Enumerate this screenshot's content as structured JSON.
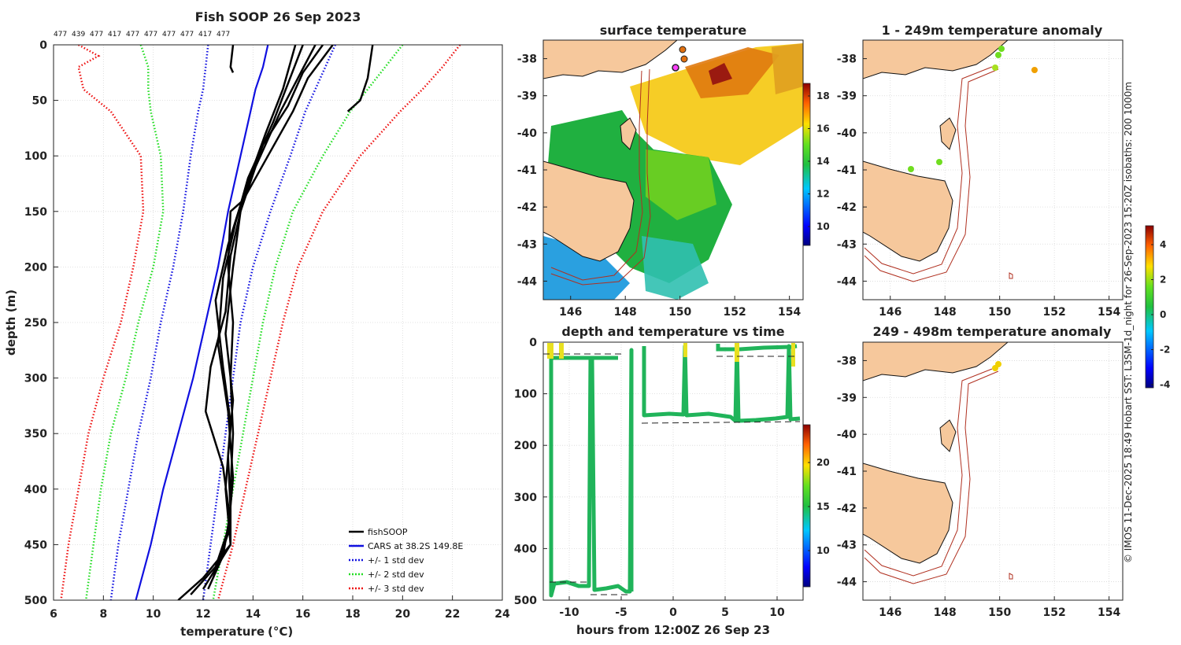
{
  "chart_data": [
    {
      "type": "line",
      "title": "Fish SOOP 26 Sep 2023",
      "xlabel": "temperature",
      "xlabel_unit": "(°C)",
      "ylabel": "depth (m)",
      "xlim": [
        6,
        24
      ],
      "ylim": [
        500,
        0
      ],
      "x_ticks": [
        "6",
        "8",
        "10",
        "12",
        "14",
        "16",
        "18",
        "20",
        "22",
        "24"
      ],
      "y_ticks": [
        "0",
        "50",
        "100",
        "150",
        "200",
        "250",
        "300",
        "350",
        "400",
        "450",
        "500"
      ],
      "top_counts": [
        "477",
        "439",
        "477",
        "417",
        "477",
        "477",
        "477",
        "477",
        "417",
        "477"
      ],
      "legend": [
        "fishSOOP",
        "CARS at 38.2S 149.8E",
        "+/- 1 std dev",
        "+/- 2 std dev",
        "+/- 3 std dev"
      ],
      "series": [
        {
          "name": "CARS",
          "color": "#1010e0",
          "depth": [
            0,
            20,
            40,
            60,
            100,
            150,
            200,
            250,
            300,
            350,
            400,
            450,
            500
          ],
          "temp": [
            14.6,
            14.4,
            14.1,
            13.9,
            13.5,
            13.0,
            12.6,
            12.1,
            11.6,
            11.0,
            10.4,
            9.9,
            9.3
          ]
        },
        {
          "name": "+1 std",
          "color": "#1010e0",
          "dotted": true,
          "depth": [
            0,
            20,
            40,
            60,
            100,
            150,
            200,
            250,
            300,
            350,
            400,
            450,
            500
          ],
          "temp": [
            17.3,
            16.9,
            16.5,
            16.1,
            15.5,
            14.7,
            14.0,
            13.5,
            13.2,
            12.9,
            12.6,
            12.3,
            12.0
          ]
        },
        {
          "name": "-1 std",
          "color": "#1010e0",
          "dotted": true,
          "depth": [
            0,
            20,
            40,
            60,
            100,
            150,
            200,
            250,
            300,
            350,
            400,
            450,
            500
          ],
          "temp": [
            12.2,
            12.1,
            12.0,
            11.8,
            11.5,
            11.2,
            10.8,
            10.3,
            9.9,
            9.4,
            9.0,
            8.6,
            8.3
          ]
        },
        {
          "name": "+2 std",
          "color": "#22dd22",
          "dotted": true,
          "depth": [
            0,
            20,
            40,
            60,
            100,
            150,
            200,
            250,
            300,
            350,
            400,
            450,
            500
          ],
          "temp": [
            20.0,
            19.3,
            18.6,
            17.9,
            16.8,
            15.6,
            14.9,
            14.4,
            14.0,
            13.6,
            13.2,
            12.8,
            12.4
          ]
        },
        {
          "name": "-2 std",
          "color": "#22dd22",
          "dotted": true,
          "depth": [
            0,
            20,
            40,
            60,
            100,
            150,
            200,
            250,
            300,
            350,
            400,
            450,
            500
          ],
          "temp": [
            9.5,
            9.8,
            9.8,
            9.9,
            10.3,
            10.4,
            10.0,
            9.4,
            8.9,
            8.3,
            7.9,
            7.6,
            7.3
          ]
        },
        {
          "name": "+3 std",
          "color": "#ee1111",
          "dotted": true,
          "depth": [
            0,
            20,
            40,
            60,
            100,
            150,
            200,
            250,
            300,
            350,
            400,
            450,
            500
          ],
          "temp": [
            22.3,
            21.6,
            20.8,
            19.9,
            18.3,
            16.8,
            15.8,
            15.2,
            14.7,
            14.2,
            13.7,
            13.2,
            12.6
          ]
        },
        {
          "name": "-3 std",
          "color": "#ee1111",
          "dotted": true,
          "depth": [
            0,
            10,
            20,
            40,
            60,
            100,
            150,
            200,
            250,
            300,
            350,
            400,
            450,
            500
          ],
          "temp": [
            7.0,
            7.8,
            7.0,
            7.2,
            8.3,
            9.5,
            9.6,
            9.2,
            8.7,
            8.0,
            7.4,
            7.0,
            6.6,
            6.3
          ]
        }
      ],
      "fish_profiles": [
        {
          "depth": [
            0,
            30,
            60,
            100,
            140,
            150,
            200,
            250,
            300,
            350,
            400,
            450,
            480,
            500
          ],
          "temp": [
            17.2,
            16.2,
            15.6,
            14.6,
            13.6,
            13.1,
            13.0,
            13.2,
            13.1,
            13.2,
            13.1,
            13.1,
            12.0,
            11.0
          ]
        },
        {
          "depth": [
            0,
            25,
            55,
            90,
            140,
            190,
            240,
            290,
            330,
            380,
            430,
            470,
            495
          ],
          "temp": [
            16.8,
            16.0,
            15.4,
            14.4,
            13.6,
            13.1,
            12.9,
            12.3,
            12.1,
            12.8,
            13.1,
            12.5,
            11.5
          ]
        },
        {
          "depth": [
            0,
            30,
            60,
            110,
            150,
            200,
            260,
            320,
            370,
            420,
            460,
            490
          ],
          "temp": [
            16.5,
            15.8,
            15.1,
            14.1,
            13.5,
            13.2,
            12.9,
            13.2,
            13.0,
            13.1,
            12.8,
            12.2
          ]
        },
        {
          "depth": [
            0,
            35,
            70,
            120,
            160,
            210,
            270,
            330,
            390,
            440,
            480
          ],
          "temp": [
            16.0,
            15.4,
            14.8,
            13.8,
            13.3,
            12.8,
            12.6,
            13.0,
            13.2,
            13.0,
            12.4
          ]
        },
        {
          "depth": [
            0,
            40,
            80,
            130,
            180,
            230,
            290,
            340,
            400,
            450,
            490
          ],
          "temp": [
            15.7,
            15.2,
            14.5,
            13.7,
            13.0,
            12.5,
            12.8,
            13.1,
            12.9,
            13.1,
            12.0
          ]
        },
        {
          "depth": [
            0,
            20,
            25
          ],
          "temp": [
            13.2,
            13.1,
            13.2
          ]
        },
        {
          "depth": [
            0,
            30,
            50,
            60
          ],
          "temp": [
            18.8,
            18.6,
            18.3,
            17.8
          ]
        }
      ]
    },
    {
      "type": "heatmap",
      "title": "surface temperature",
      "x_ticks": [
        "146",
        "148",
        "150",
        "152",
        "154"
      ],
      "y_ticks": [
        "-38",
        "-39",
        "-40",
        "-41",
        "-42",
        "-43",
        "-44"
      ],
      "colorbar_ticks": [
        "18",
        "16",
        "14",
        "12",
        "10"
      ]
    },
    {
      "type": "scatter",
      "title": "depth and temperature vs time",
      "xlabel": "hours from 12:00Z 26 Sep 23",
      "x_ticks": [
        "-10",
        "-5",
        "0",
        "5",
        "10"
      ],
      "y_ticks": [
        "0",
        "100",
        "200",
        "300",
        "400",
        "500"
      ],
      "colorbar_ticks": [
        "20",
        "15",
        "10"
      ]
    },
    {
      "type": "scatter",
      "title": "1 - 249m temperature anomaly",
      "x_ticks": [
        "146",
        "148",
        "150",
        "152",
        "154"
      ],
      "y_ticks": [
        "-38",
        "-39",
        "-40",
        "-41",
        "-42",
        "-43",
        "-44"
      ]
    },
    {
      "type": "scatter",
      "title": "249 - 498m temperature anomaly",
      "x_ticks": [
        "146",
        "148",
        "150",
        "152",
        "154"
      ],
      "y_ticks": [
        "-38",
        "-39",
        "-40",
        "-41",
        "-42",
        "-43",
        "-44"
      ],
      "colorbar_ticks": [
        "4",
        "2",
        "0",
        "-2",
        "-4"
      ]
    }
  ],
  "credit": "© IMOS 11-Dec-2025 18:49 Hobart SST: L3SM-1d_night for 26-Sep-2023 15:20Z isobaths: 200  1000m",
  "colors": {
    "land": "#f6c89c",
    "isobath": "#b03020"
  }
}
